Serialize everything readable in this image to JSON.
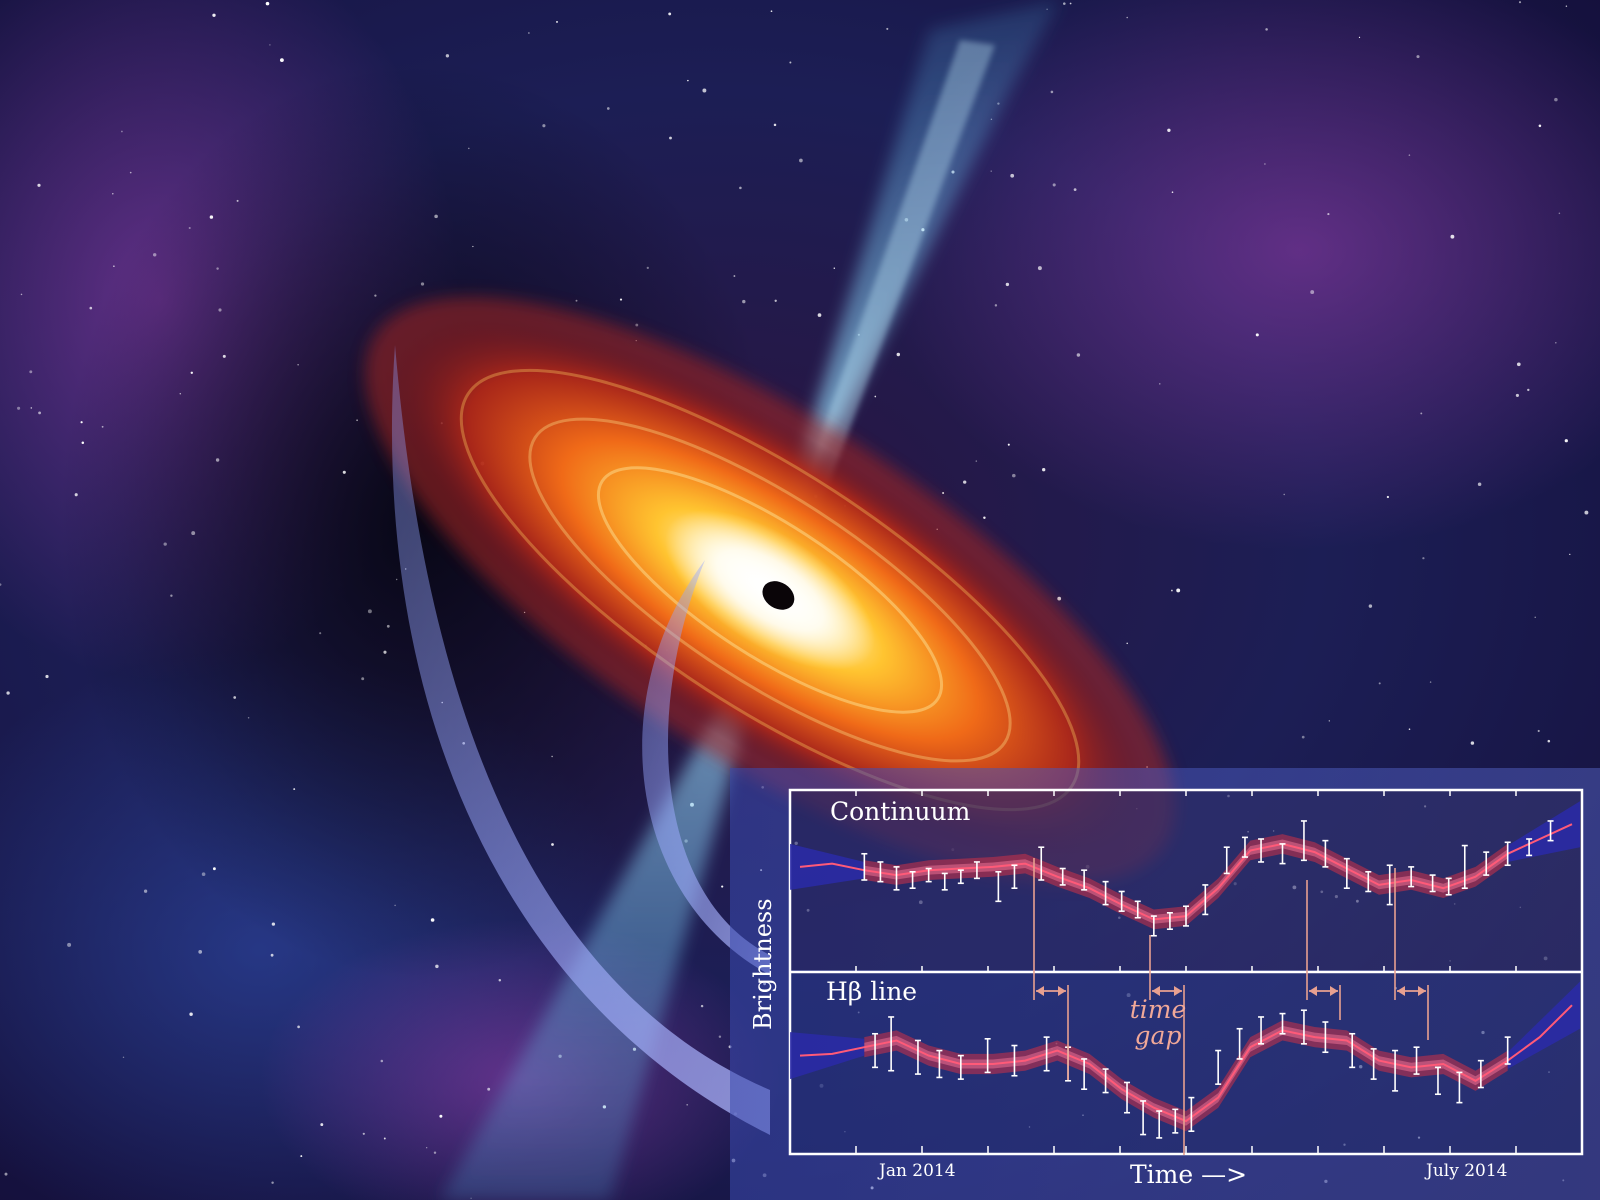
{
  "chart_data": [
    {
      "type": "line",
      "title": "Continuum",
      "xlabel": "Time —>",
      "ylabel": "Brightness",
      "x_tick_labels": [
        "Jan 2014",
        "July 2014"
      ],
      "ylim": [
        0,
        1
      ],
      "series": [
        {
          "x": [
            0,
            30,
            60,
            90,
            120,
            150,
            180,
            210,
            240,
            270,
            300,
            330,
            360,
            390,
            420,
            450,
            480,
            510,
            540,
            570,
            600,
            630,
            660,
            690,
            720
          ],
          "values": [
            0.58,
            0.6,
            0.56,
            0.53,
            0.56,
            0.57,
            0.58,
            0.6,
            0.52,
            0.45,
            0.35,
            0.26,
            0.28,
            0.45,
            0.68,
            0.72,
            0.67,
            0.57,
            0.47,
            0.5,
            0.45,
            0.52,
            0.66,
            0.75,
            0.84
          ]
        }
      ],
      "points": [
        {
          "x": 60,
          "y": 0.58,
          "err": 0.08
        },
        {
          "x": 75,
          "y": 0.55,
          "err": 0.06
        },
        {
          "x": 90,
          "y": 0.51,
          "err": 0.07
        },
        {
          "x": 105,
          "y": 0.5,
          "err": 0.05
        },
        {
          "x": 120,
          "y": 0.53,
          "err": 0.04
        },
        {
          "x": 135,
          "y": 0.49,
          "err": 0.05
        },
        {
          "x": 150,
          "y": 0.52,
          "err": 0.04
        },
        {
          "x": 165,
          "y": 0.56,
          "err": 0.05
        },
        {
          "x": 185,
          "y": 0.46,
          "err": 0.09
        },
        {
          "x": 200,
          "y": 0.52,
          "err": 0.07
        },
        {
          "x": 225,
          "y": 0.6,
          "err": 0.1
        },
        {
          "x": 245,
          "y": 0.52,
          "err": 0.05
        },
        {
          "x": 265,
          "y": 0.5,
          "err": 0.06
        },
        {
          "x": 285,
          "y": 0.42,
          "err": 0.07
        },
        {
          "x": 300,
          "y": 0.37,
          "err": 0.06
        },
        {
          "x": 315,
          "y": 0.32,
          "err": 0.05
        },
        {
          "x": 330,
          "y": 0.22,
          "err": 0.06
        },
        {
          "x": 345,
          "y": 0.25,
          "err": 0.05
        },
        {
          "x": 360,
          "y": 0.28,
          "err": 0.06
        },
        {
          "x": 378,
          "y": 0.38,
          "err": 0.09
        },
        {
          "x": 398,
          "y": 0.62,
          "err": 0.08
        },
        {
          "x": 415,
          "y": 0.7,
          "err": 0.06
        },
        {
          "x": 430,
          "y": 0.68,
          "err": 0.07
        },
        {
          "x": 450,
          "y": 0.66,
          "err": 0.06
        },
        {
          "x": 470,
          "y": 0.74,
          "err": 0.12
        },
        {
          "x": 490,
          "y": 0.66,
          "err": 0.08
        },
        {
          "x": 510,
          "y": 0.54,
          "err": 0.09
        },
        {
          "x": 530,
          "y": 0.49,
          "err": 0.06
        },
        {
          "x": 550,
          "y": 0.47,
          "err": 0.12
        },
        {
          "x": 570,
          "y": 0.52,
          "err": 0.06
        },
        {
          "x": 590,
          "y": 0.48,
          "err": 0.05
        },
        {
          "x": 605,
          "y": 0.46,
          "err": 0.05
        },
        {
          "x": 620,
          "y": 0.58,
          "err": 0.13
        },
        {
          "x": 640,
          "y": 0.6,
          "err": 0.07
        },
        {
          "x": 660,
          "y": 0.66,
          "err": 0.07
        },
        {
          "x": 680,
          "y": 0.7,
          "err": 0.05
        },
        {
          "x": 700,
          "y": 0.8,
          "err": 0.06
        }
      ],
      "grid": false
    },
    {
      "type": "line",
      "title": "Hβ line",
      "ylim": [
        0,
        1
      ],
      "series": [
        {
          "x": [
            0,
            30,
            60,
            90,
            120,
            150,
            180,
            210,
            240,
            270,
            300,
            330,
            360,
            390,
            420,
            450,
            480,
            510,
            540,
            570,
            600,
            630,
            660,
            690,
            720
          ],
          "values": [
            0.55,
            0.56,
            0.6,
            0.64,
            0.55,
            0.5,
            0.5,
            0.52,
            0.58,
            0.5,
            0.35,
            0.24,
            0.16,
            0.3,
            0.6,
            0.7,
            0.66,
            0.64,
            0.52,
            0.48,
            0.5,
            0.4,
            0.52,
            0.66,
            0.85
          ]
        }
      ],
      "points": [
        {
          "x": 70,
          "y": 0.58,
          "err": 0.1
        },
        {
          "x": 85,
          "y": 0.62,
          "err": 0.16
        },
        {
          "x": 110,
          "y": 0.54,
          "err": 0.1
        },
        {
          "x": 130,
          "y": 0.5,
          "err": 0.08
        },
        {
          "x": 150,
          "y": 0.48,
          "err": 0.07
        },
        {
          "x": 175,
          "y": 0.55,
          "err": 0.1
        },
        {
          "x": 200,
          "y": 0.52,
          "err": 0.09
        },
        {
          "x": 230,
          "y": 0.56,
          "err": 0.1
        },
        {
          "x": 250,
          "y": 0.5,
          "err": 0.1
        },
        {
          "x": 265,
          "y": 0.44,
          "err": 0.09
        },
        {
          "x": 285,
          "y": 0.4,
          "err": 0.07
        },
        {
          "x": 305,
          "y": 0.3,
          "err": 0.09
        },
        {
          "x": 320,
          "y": 0.18,
          "err": 0.1
        },
        {
          "x": 335,
          "y": 0.14,
          "err": 0.08
        },
        {
          "x": 350,
          "y": 0.16,
          "err": 0.07
        },
        {
          "x": 365,
          "y": 0.2,
          "err": 0.1
        },
        {
          "x": 390,
          "y": 0.48,
          "err": 0.1
        },
        {
          "x": 410,
          "y": 0.62,
          "err": 0.09
        },
        {
          "x": 430,
          "y": 0.7,
          "err": 0.08
        },
        {
          "x": 450,
          "y": 0.74,
          "err": 0.06
        },
        {
          "x": 470,
          "y": 0.72,
          "err": 0.1
        },
        {
          "x": 490,
          "y": 0.66,
          "err": 0.09
        },
        {
          "x": 515,
          "y": 0.58,
          "err": 0.1
        },
        {
          "x": 535,
          "y": 0.5,
          "err": 0.09
        },
        {
          "x": 555,
          "y": 0.46,
          "err": 0.12
        },
        {
          "x": 575,
          "y": 0.52,
          "err": 0.08
        },
        {
          "x": 595,
          "y": 0.4,
          "err": 0.08
        },
        {
          "x": 615,
          "y": 0.36,
          "err": 0.09
        },
        {
          "x": 635,
          "y": 0.44,
          "err": 0.08
        },
        {
          "x": 660,
          "y": 0.58,
          "err": 0.08
        }
      ],
      "grid": false
    }
  ],
  "annotation": {
    "time_label": "time",
    "gap_label": "gap"
  },
  "colors": {
    "model_line": "#ff5a78",
    "uncertainty_band": "#c0304a",
    "extrapolation": "#2a2aa8",
    "error_bars": "#ffffff",
    "lag_arrows": "#e8a090"
  }
}
